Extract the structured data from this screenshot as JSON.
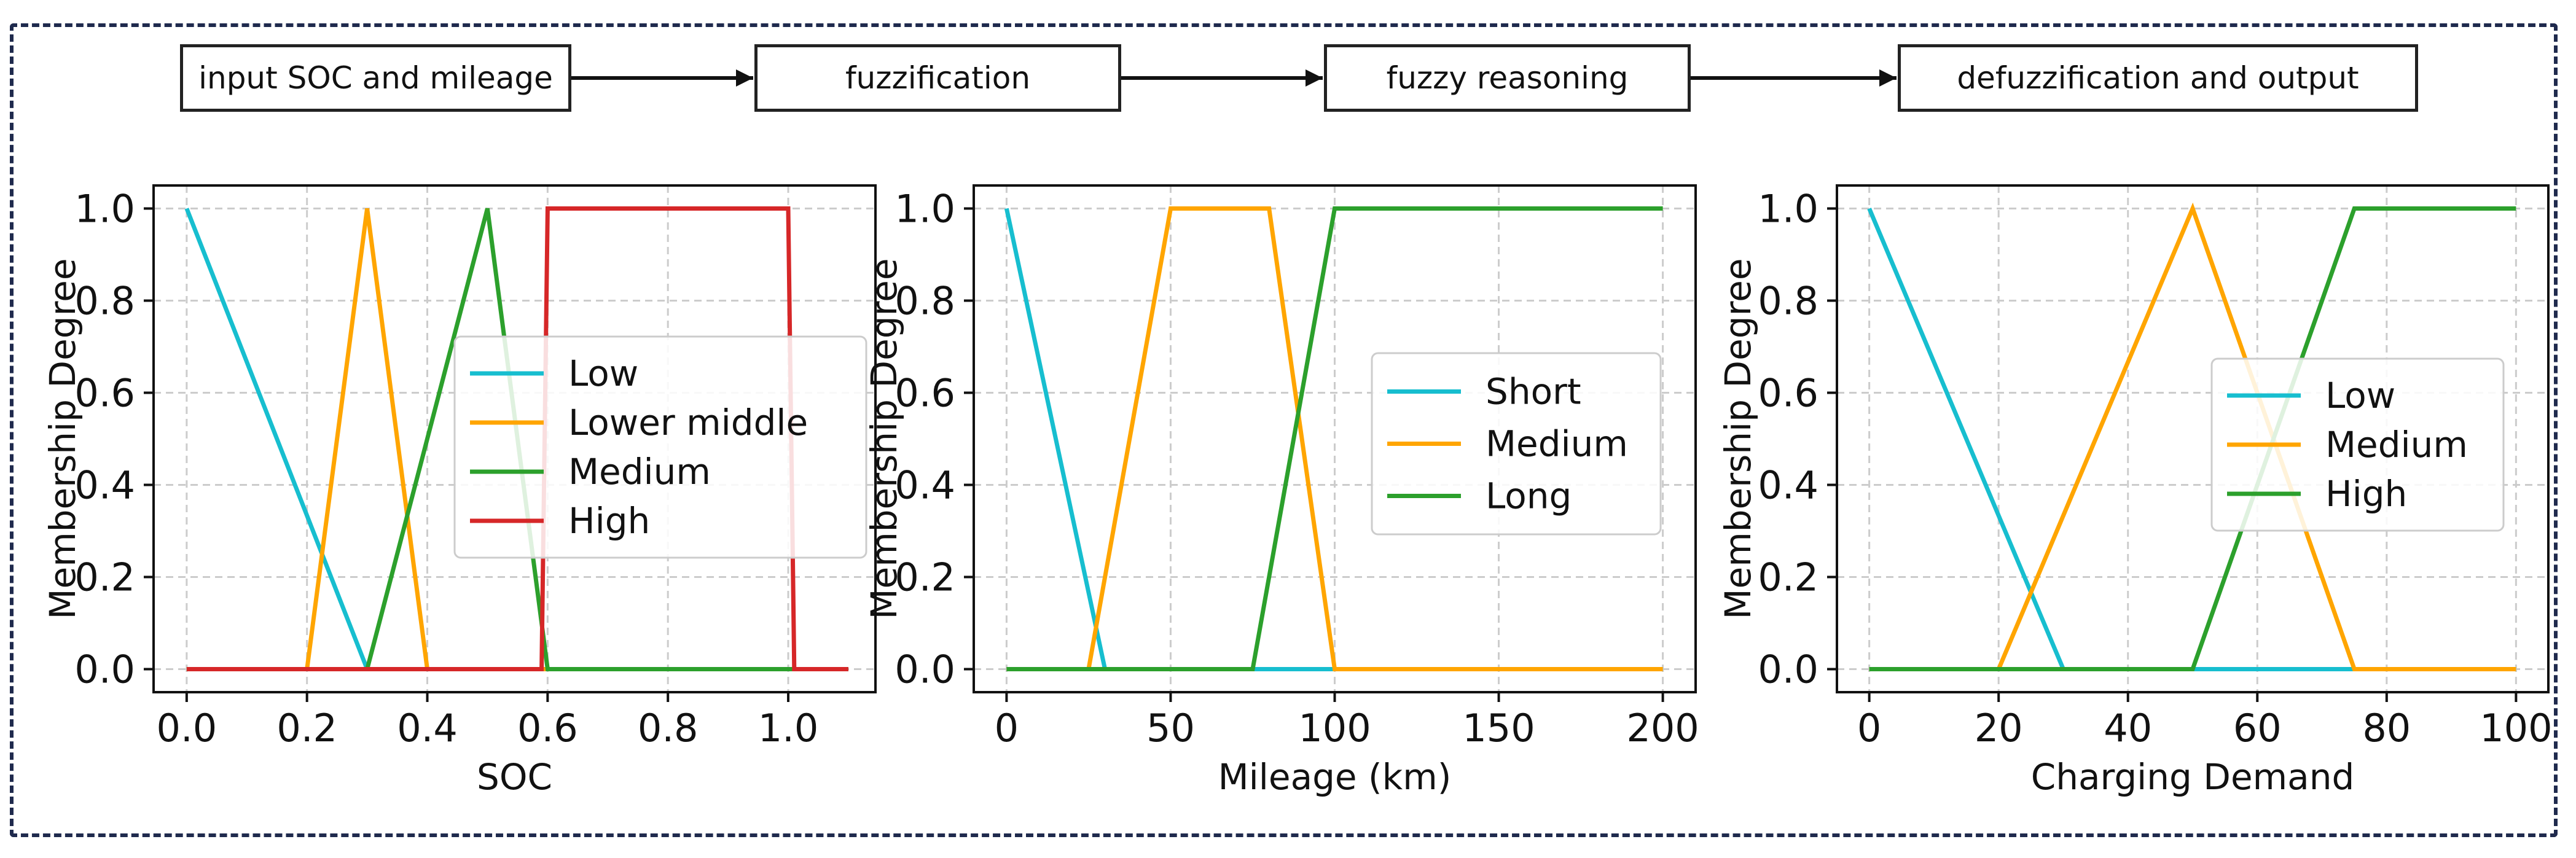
{
  "flowchart": {
    "steps": [
      "input SOC and mileage",
      "fuzzification",
      "fuzzy reasoning",
      "defuzzification and output"
    ]
  },
  "colors": {
    "frame": "#1f2a4d",
    "cyan": "#17becf",
    "orange": "#ffa500",
    "green": "#2ca02c",
    "red": "#d62728"
  },
  "chart_data": [
    {
      "type": "line",
      "title": "",
      "xlabel": "SOC",
      "ylabel": "Membership Degree",
      "xlim": [
        -0.055,
        1.145
      ],
      "ylim": [
        -0.05,
        1.05
      ],
      "xticks": [
        0.0,
        0.2,
        0.4,
        0.6,
        0.8,
        1.0
      ],
      "xtick_labels": [
        "0.0",
        "0.2",
        "0.4",
        "0.6",
        "0.8",
        "1.0"
      ],
      "yticks": [
        0.0,
        0.2,
        0.4,
        0.6,
        0.8,
        1.0
      ],
      "ytick_labels": [
        "0.0",
        "0.2",
        "0.4",
        "0.6",
        "0.8",
        "1.0"
      ],
      "grid": true,
      "legend_position": "center-right",
      "series": [
        {
          "name": "Low",
          "color": "#17becf",
          "x": [
            0,
            0.3,
            1.1
          ],
          "y": [
            1,
            0,
            0
          ]
        },
        {
          "name": "Lower middle",
          "color": "#ffa500",
          "x": [
            0,
            0.2,
            0.3,
            0.4,
            1.1
          ],
          "y": [
            0,
            0,
            1,
            0,
            0
          ]
        },
        {
          "name": "Medium",
          "color": "#2ca02c",
          "x": [
            0,
            0.3,
            0.5,
            0.6,
            1.1
          ],
          "y": [
            0,
            0,
            1,
            0,
            0
          ]
        },
        {
          "name": "High",
          "color": "#d62728",
          "x": [
            0,
            0.59,
            0.6,
            1.0,
            1.01,
            1.1
          ],
          "y": [
            0,
            0,
            1,
            1,
            0,
            0
          ]
        }
      ]
    },
    {
      "type": "line",
      "title": "",
      "xlabel": "Mileage (km)",
      "ylabel": "Membership Degree",
      "xlim": [
        -10,
        210
      ],
      "ylim": [
        -0.05,
        1.05
      ],
      "xticks": [
        0,
        50,
        100,
        150,
        200
      ],
      "xtick_labels": [
        "0",
        "50",
        "100",
        "150",
        "200"
      ],
      "yticks": [
        0.0,
        0.2,
        0.4,
        0.6,
        0.8,
        1.0
      ],
      "ytick_labels": [
        "0.0",
        "0.2",
        "0.4",
        "0.6",
        "0.8",
        "1.0"
      ],
      "grid": true,
      "legend_position": "center-right",
      "series": [
        {
          "name": "Short",
          "color": "#17becf",
          "x": [
            0,
            30,
            200
          ],
          "y": [
            1,
            0,
            0
          ]
        },
        {
          "name": "Medium",
          "color": "#ffa500",
          "x": [
            0,
            25,
            50,
            80,
            100,
            200
          ],
          "y": [
            0,
            0,
            1,
            1,
            0,
            0
          ]
        },
        {
          "name": "Long",
          "color": "#2ca02c",
          "x": [
            0,
            75,
            100,
            200
          ],
          "y": [
            0,
            0,
            1,
            1
          ]
        }
      ]
    },
    {
      "type": "line",
      "title": "",
      "xlabel": "Charging Demand",
      "ylabel": "Membership Degree",
      "xlim": [
        -5,
        105
      ],
      "ylim": [
        -0.05,
        1.05
      ],
      "xticks": [
        0,
        20,
        40,
        60,
        80,
        100
      ],
      "xtick_labels": [
        "0",
        "20",
        "40",
        "60",
        "80",
        "100"
      ],
      "yticks": [
        0.0,
        0.2,
        0.4,
        0.6,
        0.8,
        1.0
      ],
      "ytick_labels": [
        "0.0",
        "0.2",
        "0.4",
        "0.6",
        "0.8",
        "1.0"
      ],
      "grid": true,
      "legend_position": "center-right",
      "series": [
        {
          "name": "Low",
          "color": "#17becf",
          "x": [
            0,
            30,
            100
          ],
          "y": [
            1,
            0,
            0
          ]
        },
        {
          "name": "Medium",
          "color": "#ffa500",
          "x": [
            0,
            20,
            50,
            75,
            100
          ],
          "y": [
            0,
            0,
            1,
            0,
            0
          ]
        },
        {
          "name": "High",
          "color": "#2ca02c",
          "x": [
            0,
            50,
            75,
            100
          ],
          "y": [
            0,
            0,
            1,
            1
          ]
        }
      ]
    }
  ]
}
